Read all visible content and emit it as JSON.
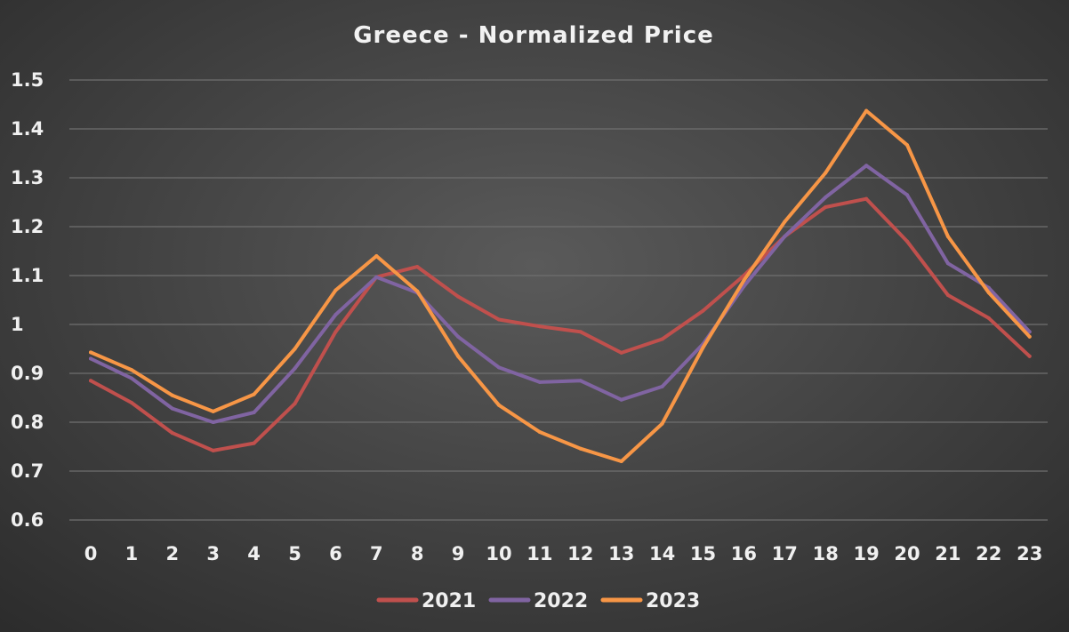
{
  "chart_data": {
    "type": "line",
    "title": "Greece - Normalized Price",
    "xlabel": "",
    "ylabel": "",
    "x": [
      0,
      1,
      2,
      3,
      4,
      5,
      6,
      7,
      8,
      9,
      10,
      11,
      12,
      13,
      14,
      15,
      16,
      17,
      18,
      19,
      20,
      21,
      22,
      23
    ],
    "x_tick_labels": [
      "0",
      "1",
      "2",
      "3",
      "4",
      "5",
      "6",
      "7",
      "8",
      "9",
      "10",
      "11",
      "12",
      "13",
      "14",
      "15",
      "16",
      "17",
      "18",
      "19",
      "20",
      "21",
      "22",
      "23"
    ],
    "y_tick_labels": [
      "0.6",
      "0.7",
      "0.8",
      "0.9",
      "1",
      "1.1",
      "1.2",
      "1.3",
      "1.4",
      "1.5"
    ],
    "y_ticks": [
      0.6,
      0.7,
      0.8,
      0.9,
      1.0,
      1.1,
      1.2,
      1.3,
      1.4,
      1.5
    ],
    "ylim": [
      0.6,
      1.5
    ],
    "grid": "horizontal",
    "legend_position": "bottom",
    "series": [
      {
        "name": "2021",
        "color": "#c0504d",
        "values": [
          0.885,
          0.84,
          0.778,
          0.742,
          0.757,
          0.838,
          0.985,
          1.097,
          1.118,
          1.057,
          1.01,
          0.996,
          0.985,
          0.942,
          0.97,
          1.028,
          1.1,
          1.18,
          1.24,
          1.257,
          1.17,
          1.06,
          1.013,
          0.935
        ]
      },
      {
        "name": "2022",
        "color": "#8064a2",
        "values": [
          0.93,
          0.89,
          0.828,
          0.8,
          0.82,
          0.91,
          1.02,
          1.097,
          1.065,
          0.975,
          0.912,
          0.882,
          0.885,
          0.846,
          0.873,
          0.96,
          1.078,
          1.18,
          1.26,
          1.325,
          1.265,
          1.125,
          1.075,
          0.985
        ]
      },
      {
        "name": "2023",
        "color": "#f79646",
        "values": [
          0.943,
          0.907,
          0.855,
          0.822,
          0.857,
          0.95,
          1.07,
          1.14,
          1.068,
          0.935,
          0.835,
          0.78,
          0.746,
          0.72,
          0.797,
          0.953,
          1.09,
          1.21,
          1.31,
          1.437,
          1.367,
          1.18,
          1.065,
          0.975
        ]
      }
    ]
  }
}
